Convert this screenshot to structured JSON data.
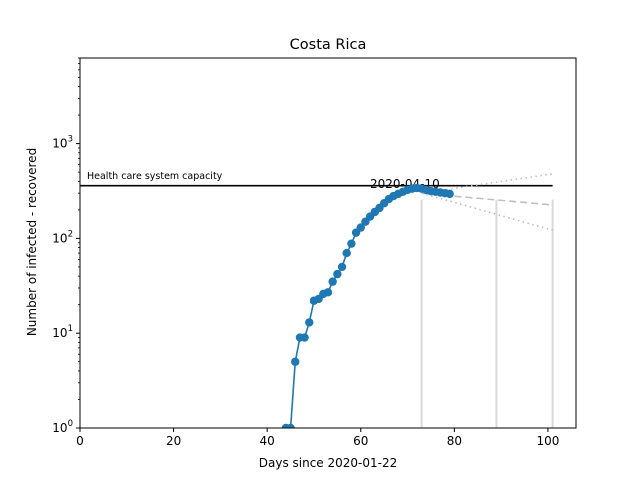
{
  "chart_data": {
    "type": "line",
    "title": "Costa Rica",
    "xlabel": "Days since 2020-01-22",
    "ylabel": "Number of infected - recovered",
    "xlim": [
      0,
      106
    ],
    "ylim": [
      1,
      8000
    ],
    "yscale": "log",
    "grid": false,
    "x_ticks": [
      0,
      20,
      40,
      60,
      80,
      100
    ],
    "y_ticks": [
      {
        "value": 1,
        "base": "10",
        "exp": "0"
      },
      {
        "value": 10,
        "base": "10",
        "exp": "1"
      },
      {
        "value": 100,
        "base": "10",
        "exp": "2"
      },
      {
        "value": 1000,
        "base": "10",
        "exp": "3"
      }
    ],
    "series": [
      {
        "x": [
          44,
          45,
          46,
          47,
          48,
          49,
          50,
          51,
          52,
          53,
          54,
          55,
          56,
          57,
          58,
          59,
          60,
          61,
          62,
          63,
          64,
          65,
          66,
          67,
          68,
          69,
          70,
          71,
          72,
          73,
          74,
          75,
          76,
          77,
          78,
          79
        ],
        "y": [
          1,
          1,
          5,
          9,
          9,
          13,
          22,
          23,
          26,
          27,
          35,
          42,
          50,
          70,
          88,
          115,
          130,
          150,
          170,
          190,
          210,
          235,
          260,
          280,
          295,
          310,
          325,
          335,
          340,
          335,
          325,
          315,
          310,
          305,
          300,
          295
        ],
        "color": "#1f77b4"
      }
    ],
    "capacity": {
      "value": 360,
      "label": "Health care system capacity",
      "x_start": 0,
      "x_end": 101
    },
    "date_annotation": {
      "text": "2020-04-10",
      "x": 72,
      "y": 335
    },
    "vertical_lines": [
      73,
      89,
      101
    ],
    "projections": [
      {
        "style": "dotted",
        "x": [
          73,
          101
        ],
        "y": [
          300,
          480
        ]
      },
      {
        "style": "dashed",
        "x": [
          73,
          101
        ],
        "y": [
          300,
          225
        ]
      },
      {
        "style": "dotted",
        "x": [
          73,
          101
        ],
        "y": [
          300,
          122
        ]
      }
    ],
    "colors": {
      "series": "#1f77b4",
      "capacity": "#000000",
      "vertical": "#d9d9d9",
      "projection": "#bfbfbf"
    }
  }
}
